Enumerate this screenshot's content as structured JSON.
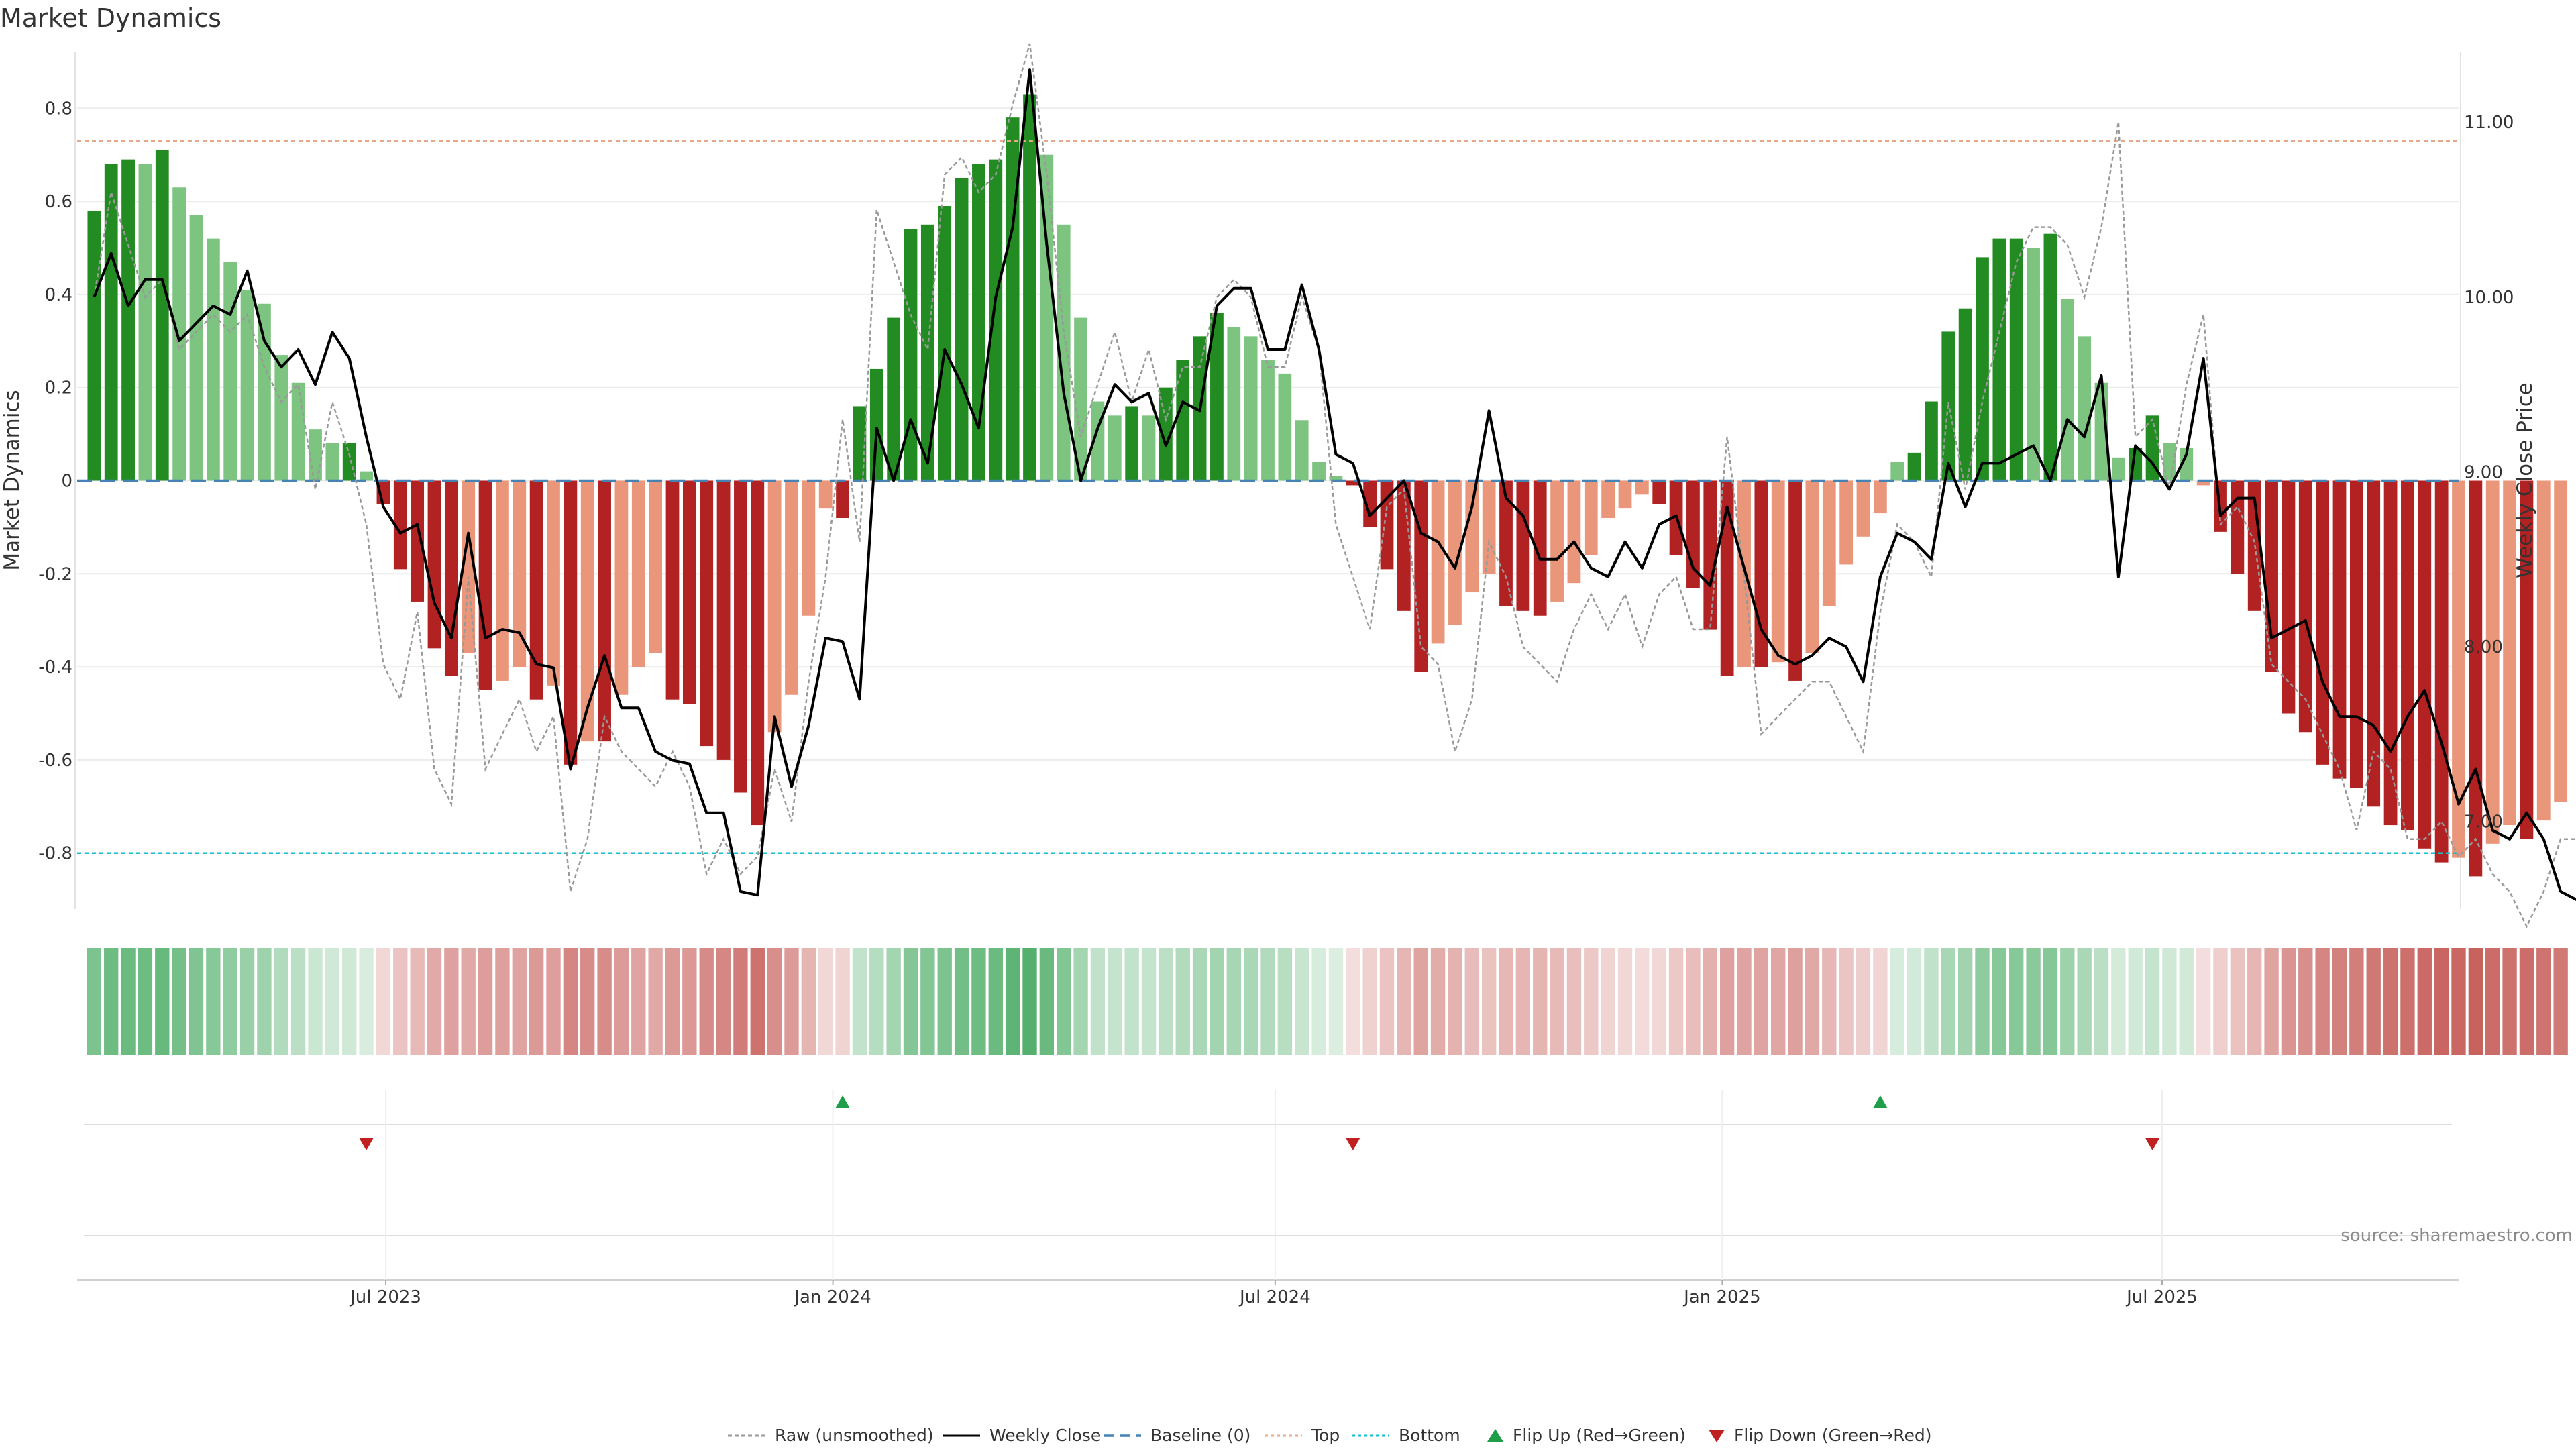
{
  "chart_data": {
    "type": "bar",
    "title": "Market Dynamics",
    "ylabel_left": "Market Dynamics",
    "ylabel_right": "Weekly Close Price",
    "source": "source: sharemaestro.com",
    "ylim_left": [
      -0.92,
      0.92
    ],
    "yticks_left": [
      0.8,
      0.6,
      0.4,
      0.2,
      0,
      -0.2,
      -0.4,
      -0.6,
      -0.8
    ],
    "ylim_right": [
      6.5,
      11.4
    ],
    "yticks_right": [
      "11.00",
      "10.00",
      "9.00",
      "8.00",
      "7.00"
    ],
    "xlim": [
      "2023-02-24",
      "2025-10-31"
    ],
    "x_tick_labels": [
      {
        "label": "Jul 2023",
        "date": "2023-07-01"
      },
      {
        "label": "Jan 2024",
        "date": "2024-01-01"
      },
      {
        "label": "Jul 2024",
        "date": "2024-07-01"
      },
      {
        "label": "Jan 2025",
        "date": "2025-01-01"
      },
      {
        "label": "Jul 2025",
        "date": "2025-07-01"
      }
    ],
    "start_date": "2023-03-03",
    "bar_values": [
      0.58,
      0.68,
      0.69,
      0.68,
      0.71,
      0.63,
      0.57,
      0.52,
      0.47,
      0.41,
      0.38,
      0.27,
      0.21,
      0.11,
      0.08,
      0.08,
      0.02,
      -0.05,
      -0.19,
      -0.26,
      -0.36,
      -0.42,
      -0.37,
      -0.45,
      -0.43,
      -0.4,
      -0.47,
      -0.44,
      -0.61,
      -0.56,
      -0.56,
      -0.46,
      -0.4,
      -0.37,
      -0.47,
      -0.48,
      -0.57,
      -0.6,
      -0.67,
      -0.74,
      -0.54,
      -0.46,
      -0.29,
      -0.06,
      -0.08,
      0.16,
      0.24,
      0.35,
      0.54,
      0.55,
      0.59,
      0.65,
      0.68,
      0.69,
      0.78,
      0.83,
      0.7,
      0.55,
      0.35,
      0.17,
      0.14,
      0.16,
      0.14,
      0.2,
      0.26,
      0.31,
      0.36,
      0.33,
      0.31,
      0.26,
      0.23,
      0.13,
      0.04,
      0.01,
      -0.01,
      -0.1,
      -0.19,
      -0.28,
      -0.41,
      -0.35,
      -0.31,
      -0.24,
      -0.2,
      -0.27,
      -0.28,
      -0.29,
      -0.26,
      -0.22,
      -0.16,
      -0.08,
      -0.06,
      -0.03,
      -0.05,
      -0.16,
      -0.23,
      -0.32,
      -0.42,
      -0.4,
      -0.4,
      -0.39,
      -0.43,
      -0.37,
      -0.27,
      -0.18,
      -0.12,
      -0.07,
      0.04,
      0.06,
      0.17,
      0.32,
      0.37,
      0.48,
      0.52,
      0.52,
      0.5,
      0.53,
      0.39,
      0.31,
      0.21,
      0.05,
      0.07,
      0.14,
      0.08,
      0.07,
      -0.01,
      -0.11,
      -0.2,
      -0.28,
      -0.41,
      -0.5,
      -0.54,
      -0.61,
      -0.64,
      -0.66,
      -0.7,
      -0.74,
      -0.75,
      -0.79,
      -0.82,
      -0.81,
      -0.85,
      -0.78,
      -0.74,
      -0.77,
      -0.73,
      -0.69
    ],
    "weekly_close": [
      10.0,
      10.25,
      9.95,
      10.1,
      10.1,
      9.75,
      9.85,
      9.95,
      9.9,
      10.15,
      9.75,
      9.6,
      9.7,
      9.5,
      9.8,
      9.65,
      9.2,
      8.8,
      8.65,
      8.7,
      8.25,
      8.05,
      8.65,
      8.05,
      8.1,
      8.08,
      7.9,
      7.88,
      7.3,
      7.65,
      7.95,
      7.65,
      7.65,
      7.4,
      7.35,
      7.33,
      7.05,
      7.05,
      6.6,
      6.58,
      7.6,
      7.2,
      7.55,
      8.05,
      8.03,
      7.7,
      9.25,
      8.95,
      9.3,
      9.05,
      9.7,
      9.5,
      9.25,
      10.0,
      10.4,
      11.3,
      10.3,
      9.45,
      8.95,
      9.25,
      9.5,
      9.4,
      9.45,
      9.15,
      9.4,
      9.35,
      9.95,
      10.05,
      10.05,
      9.7,
      9.7,
      10.07,
      9.7,
      9.1,
      9.05,
      8.75,
      8.85,
      8.95,
      8.65,
      8.6,
      8.45,
      8.8,
      9.35,
      8.85,
      8.75,
      8.5,
      8.5,
      8.6,
      8.45,
      8.4,
      8.6,
      8.45,
      8.7,
      8.75,
      8.45,
      8.35,
      8.8,
      8.45,
      8.1,
      7.95,
      7.9,
      7.95,
      8.05,
      8.0,
      7.8,
      8.4,
      8.65,
      8.6,
      8.5,
      9.05,
      8.8,
      9.05,
      9.05,
      9.1,
      9.15,
      8.95,
      9.3,
      9.2,
      9.55,
      8.4,
      9.15,
      9.05,
      8.9,
      9.1,
      9.65,
      8.75,
      8.85,
      8.85,
      8.05,
      8.1,
      8.15,
      7.8,
      7.6,
      7.6,
      7.55,
      7.4,
      7.6,
      7.75,
      7.45,
      7.1,
      7.3,
      6.95,
      6.9,
      7.05,
      6.9,
      6.6,
      6.55
    ],
    "raw_unsmoothed": [
      10.0,
      10.6,
      10.3,
      10.0,
      10.1,
      9.7,
      9.8,
      9.9,
      9.8,
      9.9,
      9.6,
      9.4,
      9.5,
      8.9,
      9.4,
      9.1,
      8.7,
      7.9,
      7.7,
      8.2,
      7.3,
      7.1,
      8.4,
      7.3,
      7.5,
      7.7,
      7.4,
      7.6,
      6.6,
      6.9,
      7.6,
      7.4,
      7.3,
      7.2,
      7.4,
      7.2,
      6.7,
      6.9,
      6.7,
      6.8,
      7.3,
      7.0,
      7.8,
      8.4,
      9.3,
      8.6,
      10.5,
      10.2,
      9.9,
      9.7,
      10.7,
      10.8,
      10.6,
      10.7,
      11.1,
      11.45,
      10.7,
      9.8,
      9.2,
      9.5,
      9.8,
      9.4,
      9.7,
      9.3,
      9.6,
      9.6,
      10.0,
      10.1,
      10.0,
      9.6,
      9.6,
      10.0,
      9.7,
      8.7,
      8.4,
      8.1,
      8.8,
      8.9,
      8.0,
      7.9,
      7.4,
      7.7,
      8.6,
      8.4,
      8.0,
      7.9,
      7.8,
      8.1,
      8.3,
      8.1,
      8.3,
      8.0,
      8.3,
      8.4,
      8.1,
      8.1,
      9.2,
      8.4,
      7.5,
      7.6,
      7.7,
      7.8,
      7.8,
      7.6,
      7.4,
      8.2,
      8.7,
      8.6,
      8.4,
      9.4,
      8.9,
      9.4,
      9.8,
      10.2,
      10.4,
      10.4,
      10.3,
      10.0,
      10.4,
      11.0,
      9.2,
      9.3,
      8.9,
      9.5,
      9.9,
      8.7,
      8.8,
      8.6,
      7.9,
      7.8,
      7.7,
      7.5,
      7.3,
      6.95,
      7.4,
      7.3,
      6.9,
      6.9,
      7.0,
      6.8,
      6.9,
      6.7,
      6.6,
      6.4,
      6.6,
      6.9,
      6.9
    ],
    "baseline": 0,
    "top_line": 0.73,
    "bottom_line": -0.8,
    "flip_up_dates": [
      "2024-01-05",
      "2025-03-07"
    ],
    "flip_down_dates": [
      "2023-06-23",
      "2024-08-02",
      "2025-06-27"
    ],
    "colors": {
      "strong_positive": "#228b22",
      "weak_positive": "#7cc47f",
      "strong_negative": "#b22222",
      "weak_negative": "#e9967a",
      "weekly_close": "#000000",
      "raw": "#999999",
      "baseline": "#4682b4",
      "top": "#e9a988",
      "bottom": "#17becf",
      "flip_up": "#1f9e4a",
      "flip_down": "#c0201f",
      "heat_positive": "#3ea65a",
      "heat_negative": "#c2504b"
    },
    "legend": [
      {
        "key": "raw",
        "label": "Raw (unsmoothed)"
      },
      {
        "key": "weekly_close",
        "label": "Weekly Close"
      },
      {
        "key": "baseline",
        "label": "Baseline (0)"
      },
      {
        "key": "top",
        "label": "Top"
      },
      {
        "key": "bottom",
        "label": "Bottom"
      },
      {
        "key": "flip_up",
        "label": "Flip Up (Red→Green)"
      },
      {
        "key": "flip_down",
        "label": "Flip Down (Green→Red)"
      }
    ]
  }
}
